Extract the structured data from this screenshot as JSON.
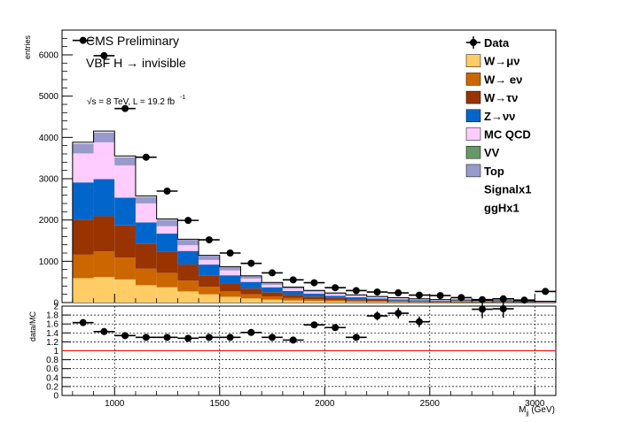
{
  "chart_data": [
    {
      "type": "bar",
      "stacked": true,
      "ylabel": "entries",
      "xlim": [
        750,
        3100
      ],
      "ylim": [
        0,
        6600
      ],
      "yticks": [
        0,
        1000,
        2000,
        3000,
        4000,
        5000,
        6000
      ],
      "bin_edges": [
        800,
        900,
        1000,
        1100,
        1200,
        1300,
        1400,
        1500,
        1600,
        1700,
        1800,
        1900,
        2000,
        2100,
        2200,
        2300,
        2400,
        2500,
        2600,
        2700,
        2800,
        2900,
        3000,
        3100
      ],
      "series": [
        {
          "name": "W→μν",
          "color": "#ffcc66",
          "values": [
            590,
            620,
            560,
            420,
            370,
            270,
            200,
            140,
            100,
            70,
            50,
            40,
            30,
            22,
            16,
            12,
            9,
            7,
            6,
            5,
            4,
            3,
            3
          ]
        },
        {
          "name": "W→ eν",
          "color": "#cc6600",
          "values": [
            570,
            620,
            530,
            400,
            350,
            260,
            180,
            130,
            100,
            80,
            60,
            45,
            35,
            26,
            20,
            15,
            11,
            9,
            7,
            6,
            5,
            4,
            3
          ]
        },
        {
          "name": "W→τν",
          "color": "#993300",
          "values": [
            850,
            850,
            780,
            610,
            510,
            390,
            280,
            190,
            140,
            100,
            80,
            60,
            45,
            35,
            28,
            22,
            17,
            13,
            11,
            9,
            7,
            6,
            5
          ]
        },
        {
          "name": "Z→νν",
          "color": "#0066cc",
          "values": [
            900,
            900,
            670,
            510,
            440,
            330,
            260,
            200,
            160,
            120,
            90,
            70,
            55,
            45,
            36,
            28,
            22,
            17,
            14,
            11,
            9,
            8,
            6
          ]
        },
        {
          "name": "MC QCD",
          "color": "#ffccff",
          "values": [
            700,
            890,
            780,
            460,
            180,
            140,
            110,
            120,
            80,
            60,
            55,
            50,
            40,
            40,
            30,
            25,
            18,
            16,
            14,
            12,
            10,
            9,
            8
          ]
        },
        {
          "name": "VV",
          "color": "#669966",
          "values": [
            5,
            5,
            5,
            4,
            4,
            3,
            3,
            2,
            2,
            2,
            1,
            1,
            1,
            1,
            1,
            1,
            1,
            1,
            1,
            1,
            1,
            1,
            1
          ]
        },
        {
          "name": "Top",
          "color": "#9999cc",
          "values": [
            235,
            235,
            195,
            155,
            150,
            127,
            97,
            78,
            58,
            48,
            35,
            24,
            24,
            16,
            14,
            12,
            10,
            7,
            7,
            6,
            4,
            4,
            4
          ]
        },
        {
          "name": "Signalx1",
          "color": "#000000",
          "values": [
            25,
            25,
            25,
            20,
            15,
            12,
            10,
            8,
            6,
            5,
            4,
            3,
            3,
            2,
            2,
            2,
            2,
            1,
            1,
            1,
            1,
            1,
            1
          ]
        },
        {
          "name": "ggHx1",
          "color": "#000000",
          "values": [
            10,
            10,
            8,
            6,
            5,
            4,
            3,
            3,
            2,
            2,
            1,
            1,
            1,
            1,
            1,
            1,
            1,
            1,
            1,
            1,
            1,
            1,
            1
          ]
        }
      ],
      "data": {
        "name": "Data",
        "x": [
          850,
          950,
          1050,
          1150,
          1250,
          1350,
          1450,
          1550,
          1650,
          1750,
          1850,
          1950,
          2050,
          2150,
          2250,
          2350,
          2450,
          2550,
          2650,
          2750,
          2850,
          2950,
          3050
        ],
        "y": [
          6350,
          5980,
          4700,
          3520,
          2700,
          1990,
          1520,
          1200,
          950,
          720,
          550,
          480,
          360,
          290,
          255,
          235,
          180,
          170,
          120,
          70,
          90,
          60,
          270
        ],
        "yerr": [
          80,
          77,
          69,
          59,
          52,
          45,
          39,
          35,
          31,
          27,
          23,
          22,
          19,
          17,
          16,
          15,
          13,
          13,
          11,
          8,
          9,
          8,
          16
        ]
      },
      "texts": {
        "label1": "CMS Preliminary",
        "label2": "VBF H → invisible",
        "lumi_root": "√",
        "lumi_s": "s",
        "lumi_text": " = 8 TeV, L = 19.2 fb",
        "lumi_sup": "-1"
      }
    },
    {
      "type": "scatter",
      "ylabel": "data/MC",
      "xlabel_main": "M",
      "xlabel_sub": "jj",
      "xlabel_unit": " (GeV)",
      "xlim": [
        750,
        3100
      ],
      "ylim": [
        0,
        2
      ],
      "xticks": [
        1000,
        1500,
        2000,
        2500,
        3000
      ],
      "yticks": [
        0,
        0.2,
        0.4,
        0.6,
        0.8,
        1,
        1.2,
        1.4,
        1.6,
        1.8,
        2
      ],
      "grid": true,
      "reference_line": 1,
      "x": [
        850,
        950,
        1050,
        1150,
        1250,
        1350,
        1450,
        1550,
        1650,
        1750,
        1850,
        1950,
        2050,
        2150,
        2250,
        2350,
        2450,
        2750,
        2850
      ],
      "y": [
        1.63,
        1.43,
        1.34,
        1.3,
        1.3,
        1.28,
        1.3,
        1.3,
        1.41,
        1.3,
        1.24,
        1.58,
        1.52,
        1.3,
        1.78,
        1.84,
        1.65,
        1.93,
        1.94
      ],
      "yerr": [
        0.03,
        0.03,
        0.03,
        0.03,
        0.03,
        0.03,
        0.03,
        0.03,
        0.04,
        0.04,
        0.05,
        0.05,
        0.06,
        0.07,
        0.1,
        0.12,
        0.12,
        0.2,
        0.2
      ]
    }
  ]
}
